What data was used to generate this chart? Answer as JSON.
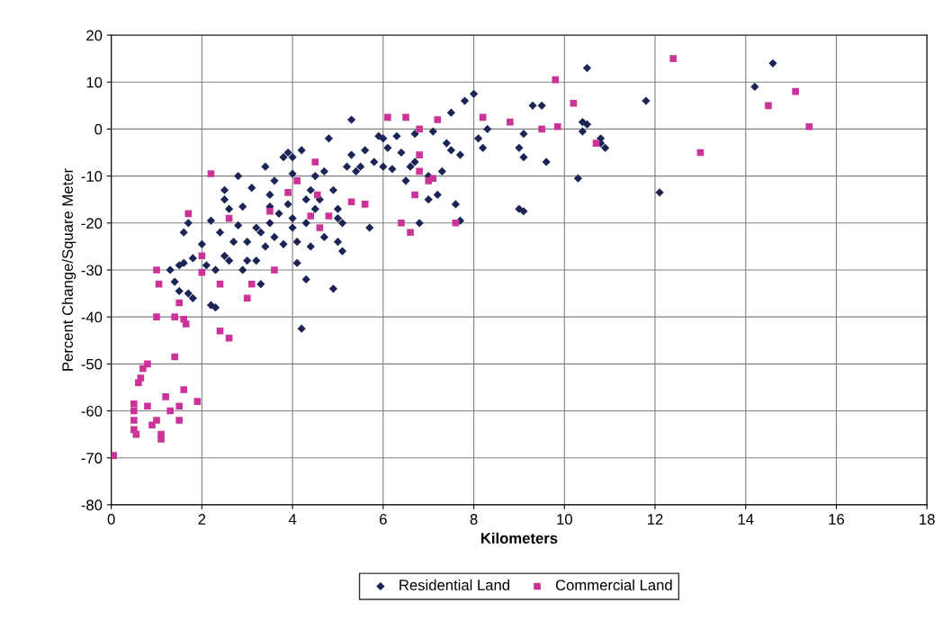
{
  "chart_data": {
    "type": "scatter",
    "xlabel": "Kilometers",
    "ylabel": "Percent Change/Square Meter",
    "xlim": [
      0,
      18
    ],
    "xticks": [
      0,
      2,
      4,
      6,
      8,
      10,
      12,
      14,
      16,
      18
    ],
    "ylim": [
      -80,
      20
    ],
    "yticks": [
      -80,
      -70,
      -60,
      -50,
      -40,
      -30,
      -20,
      -10,
      0,
      10,
      20
    ],
    "grid": true,
    "legend": "bottom",
    "series": [
      {
        "name": "Residential Land",
        "color": "#1a2455",
        "marker": "diamond",
        "x": [
          1.3,
          1.4,
          1.5,
          1.5,
          1.6,
          1.6,
          1.7,
          1.8,
          1.8,
          1.7,
          2.0,
          2.1,
          2.2,
          2.2,
          2.3,
          2.3,
          2.4,
          2.5,
          2.5,
          2.5,
          2.6,
          2.7,
          2.8,
          2.8,
          2.9,
          2.9,
          3.0,
          3.0,
          3.1,
          3.2,
          3.2,
          3.3,
          3.3,
          3.4,
          3.4,
          3.5,
          3.5,
          3.6,
          3.6,
          3.7,
          3.8,
          3.8,
          3.9,
          3.9,
          4.0,
          4.0,
          4.0,
          4.1,
          4.1,
          4.2,
          4.2,
          4.3,
          4.3,
          4.3,
          4.4,
          4.4,
          4.5,
          4.5,
          4.6,
          4.7,
          4.7,
          4.8,
          4.9,
          4.9,
          5.0,
          5.0,
          5.1,
          5.1,
          5.2,
          5.3,
          5.3,
          5.4,
          5.5,
          5.6,
          5.7,
          5.8,
          5.9,
          6.0,
          6.0,
          6.1,
          6.2,
          6.3,
          6.4,
          6.5,
          6.6,
          6.7,
          6.7,
          6.8,
          7.0,
          7.0,
          7.1,
          7.2,
          7.3,
          7.4,
          7.5,
          7.5,
          7.6,
          7.7,
          7.7,
          7.8,
          8.0,
          8.1,
          8.3,
          8.2,
          9.0,
          9.0,
          9.1,
          9.1,
          9.3,
          9.5,
          9.6,
          9.1,
          10.3,
          10.4,
          10.4,
          10.5,
          10.5,
          10.8,
          10.8,
          10.9,
          11.8,
          12.1,
          14.2,
          14.6,
          2.6,
          3.5,
          4.0,
          5.0
        ],
        "values": [
          -30,
          -32.5,
          -29,
          -34.5,
          -28.5,
          -22,
          -35,
          -36,
          -27.5,
          -20,
          -24.5,
          -29,
          -19.5,
          -37.5,
          -38,
          -30,
          -22,
          -27,
          -15,
          -13,
          -17,
          -24,
          -20.5,
          -10,
          -16.5,
          -30,
          -24,
          -28,
          -12.5,
          -21,
          -28,
          -22,
          -33,
          -8,
          -25,
          -14,
          -20,
          -23,
          -11,
          -18,
          -24.5,
          -6,
          -5,
          -16,
          -19,
          -21,
          -9.5,
          -24,
          -28.5,
          -4.5,
          -42.5,
          -15,
          -20,
          -32,
          -25,
          -13,
          -10,
          -17,
          -15,
          -23,
          -9,
          -2,
          -34,
          -13,
          -19,
          -24,
          -26,
          -20,
          -8,
          2,
          -5.5,
          -9,
          -8,
          -4.5,
          -21,
          -7,
          -1.5,
          -8,
          -2,
          -4,
          -8.5,
          -1.5,
          -5,
          -11,
          -8,
          -7,
          -1,
          -20,
          -10,
          -15,
          -0.5,
          -14,
          -9,
          -3,
          -4.5,
          3.5,
          -16,
          -19.5,
          -5.5,
          6,
          7.5,
          -2,
          0,
          -4,
          -4,
          -17,
          -17.5,
          -6,
          5,
          5,
          -7,
          -1,
          -10.5,
          1.5,
          -0.5,
          13,
          1,
          -2,
          -3,
          -4,
          6,
          -13.5,
          9,
          14,
          -28,
          -16.5,
          -6,
          -17
        ]
      },
      {
        "name": "Commercial Land",
        "color": "#cc3399",
        "marker": "square",
        "x": [
          0.05,
          0.5,
          0.5,
          0.5,
          0.5,
          0.55,
          0.6,
          0.65,
          0.7,
          0.8,
          0.8,
          0.9,
          1.0,
          1.0,
          1.0,
          1.05,
          1.1,
          1.1,
          1.2,
          1.3,
          1.4,
          1.4,
          1.5,
          1.5,
          1.5,
          1.6,
          1.6,
          1.65,
          1.7,
          1.9,
          2.0,
          2.0,
          2.2,
          2.4,
          2.4,
          2.6,
          2.6,
          3.0,
          3.1,
          3.5,
          3.6,
          3.9,
          4.1,
          4.4,
          4.5,
          4.6,
          4.8,
          5.3,
          6.1,
          6.5,
          6.7,
          6.8,
          6.6,
          6.4,
          6.8,
          7.1,
          7.2,
          7.6,
          7.0,
          8.2,
          8.8,
          9.5,
          9.8,
          9.85,
          10.2,
          10.7,
          12.4,
          13.0,
          14.5,
          15.1,
          15.4,
          6.8,
          4.55,
          5.6
        ],
        "values": [
          -69.5,
          -58.5,
          -60,
          -62,
          -64,
          -65,
          -54,
          -53,
          -51,
          -50,
          -59,
          -63,
          -62,
          -30,
          -40,
          -33,
          -66,
          -65,
          -57,
          -60,
          -48.5,
          -40,
          -59,
          -62,
          -37,
          -55.5,
          -40.5,
          -41.5,
          -18,
          -58,
          -27,
          -30.5,
          -9.5,
          -43,
          -33,
          -44.5,
          -19,
          -36,
          -33,
          -17.5,
          -30,
          -13.5,
          -11,
          -18.5,
          -7,
          -21,
          -18.5,
          -15.5,
          2.5,
          2.5,
          -14,
          -9,
          -22,
          -20,
          0,
          -10.5,
          2,
          -20,
          -11,
          2.5,
          1.5,
          0,
          10.5,
          0.5,
          5.5,
          -3,
          15,
          -5,
          5,
          8,
          0.5,
          -5.5,
          -14,
          -16
        ]
      }
    ]
  }
}
